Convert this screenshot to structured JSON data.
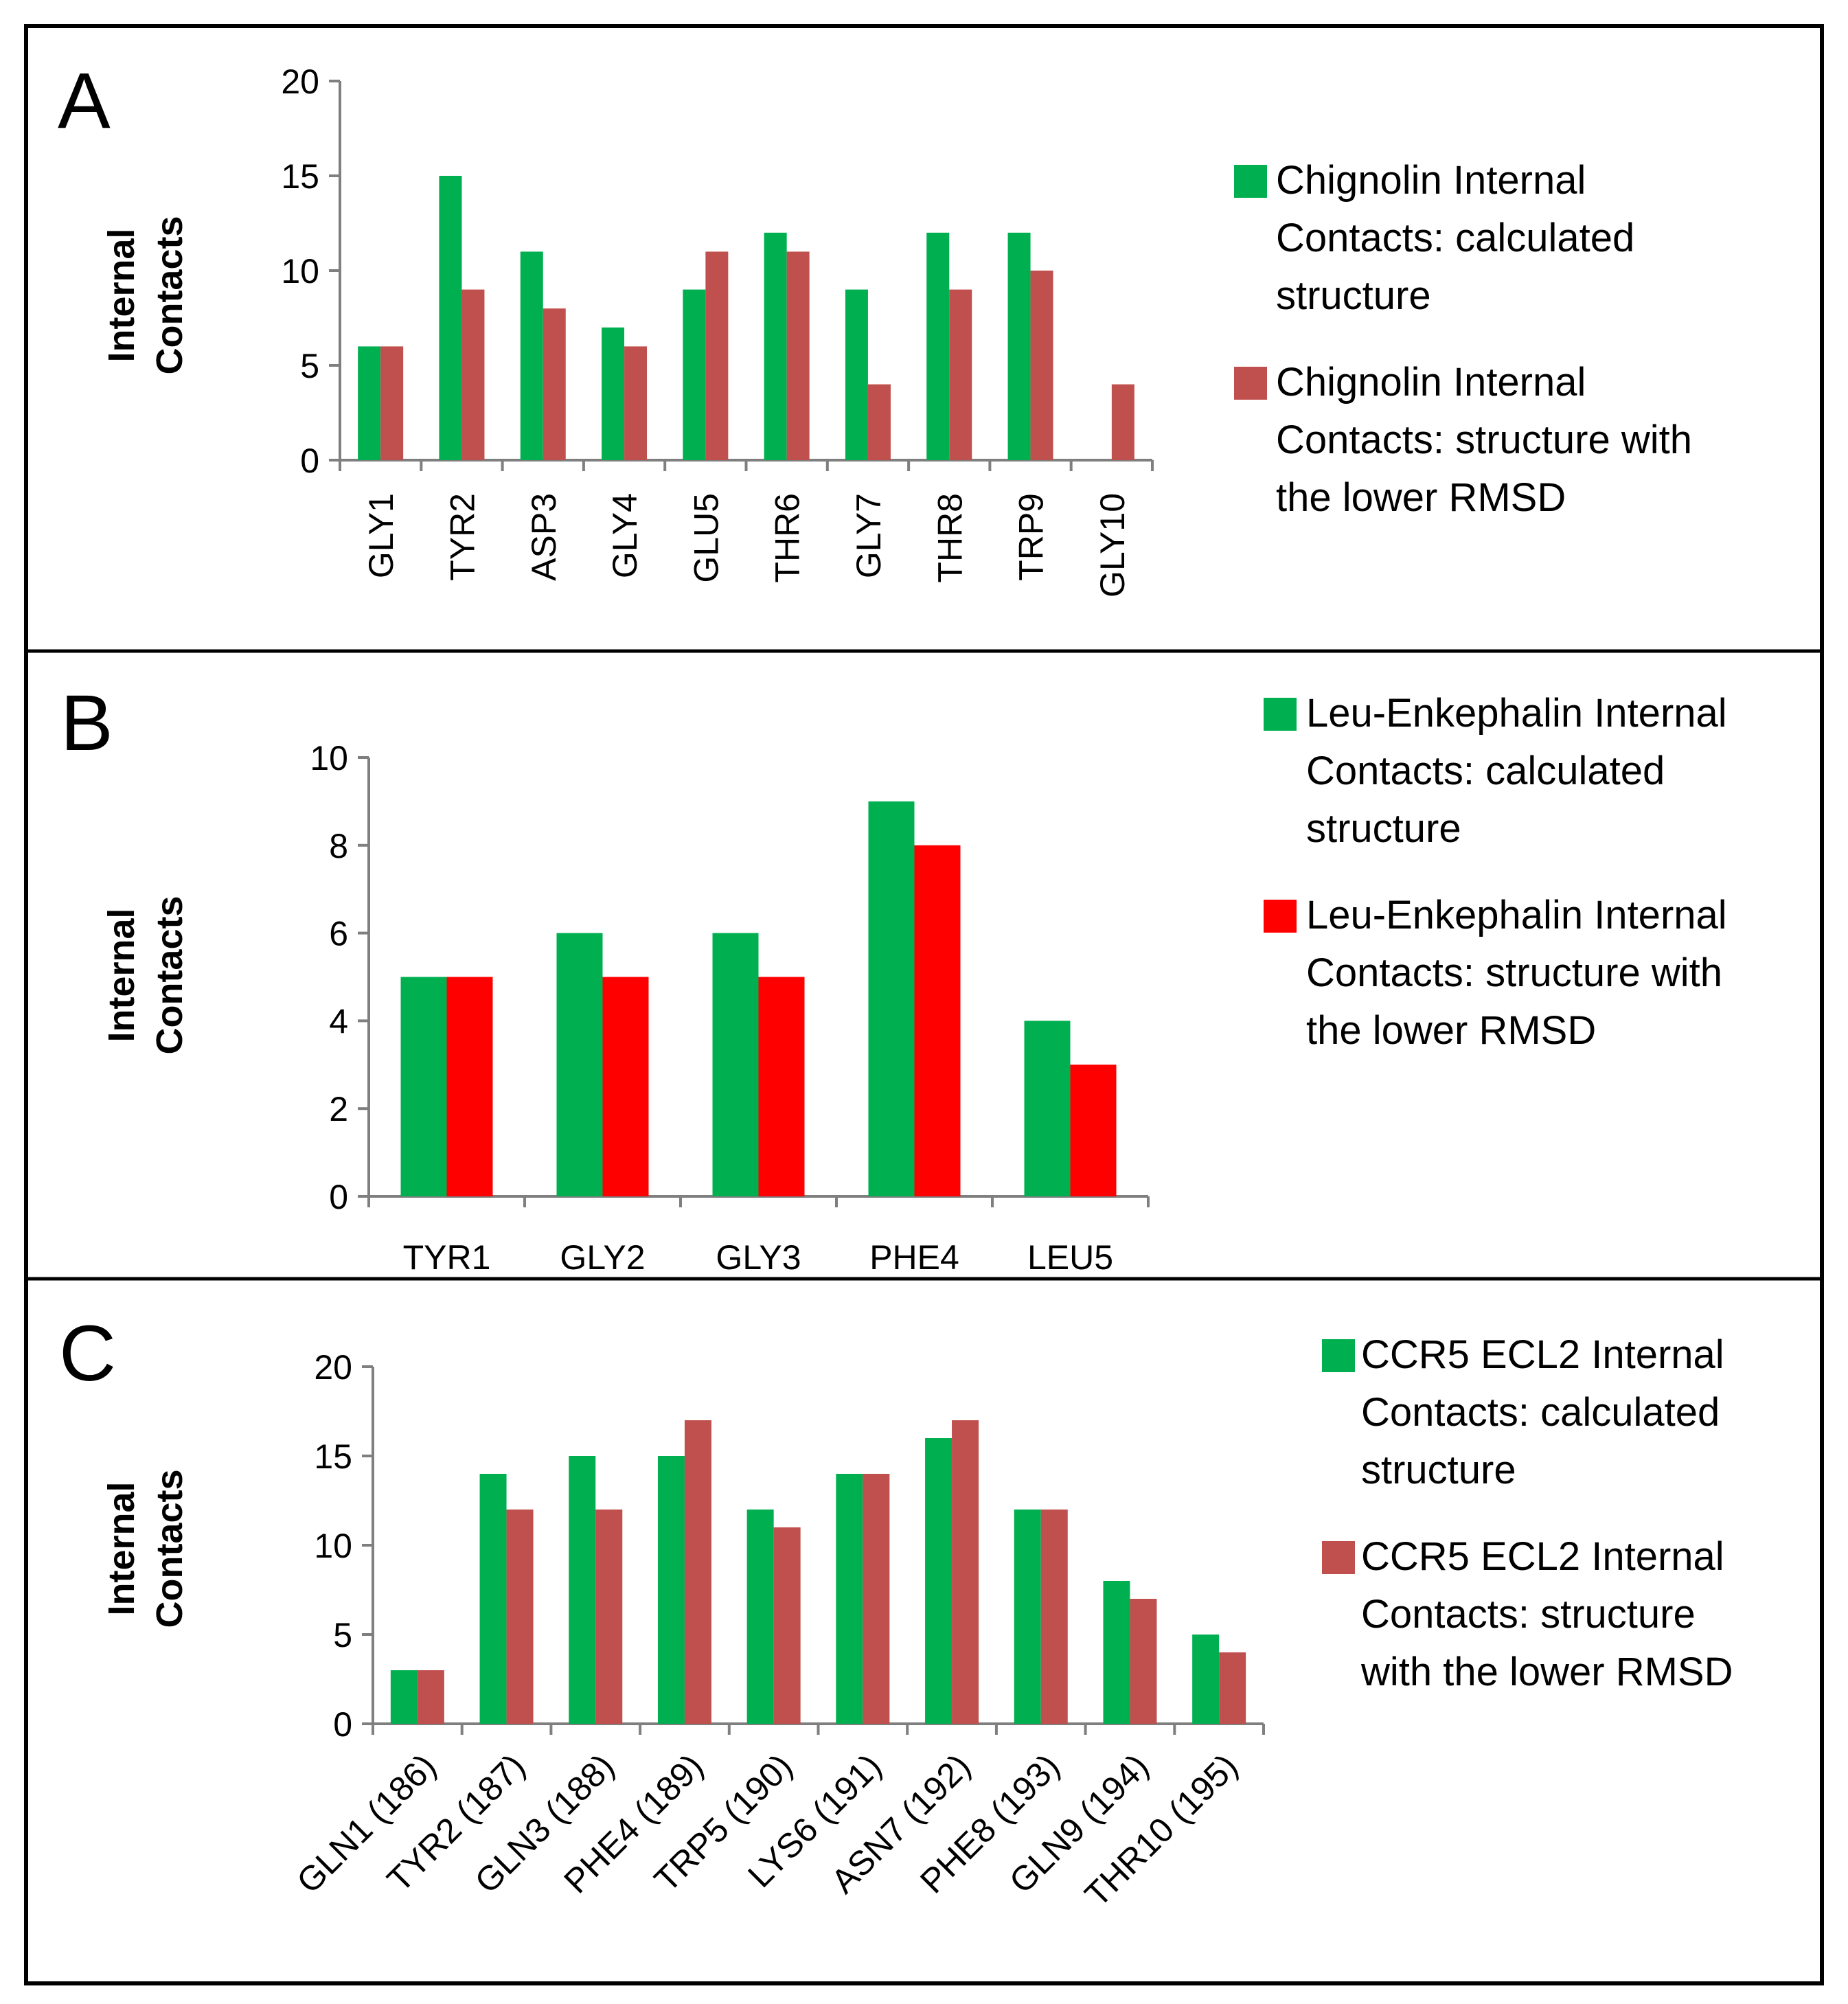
{
  "chart_data": [
    {
      "panel": "A",
      "type": "bar",
      "title": "",
      "xlabel": "",
      "ylabel": [
        "Internal",
        "Contacts"
      ],
      "ylim": [
        0,
        20
      ],
      "yticks": [
        0,
        5,
        10,
        15,
        20
      ],
      "grid": false,
      "legend_position": "right",
      "categories": [
        "GLY1",
        "TYR2",
        "ASP3",
        "GLY4",
        "GLU5",
        "THR6",
        "GLY7",
        "THR8",
        "TRP9",
        "GLY10"
      ],
      "series": [
        {
          "name": "Chignolin Internal Contacts: calculated structure",
          "legend_lines": [
            "Chignolin Internal",
            "Contacts: calculated",
            "structure"
          ],
          "color": "#00b050",
          "values": [
            6,
            15,
            11,
            7,
            9,
            12,
            9,
            12,
            12,
            0
          ]
        },
        {
          "name": "Chignolin Internal Contacts: structure with the lower RMSD",
          "legend_lines": [
            "Chignolin Internal",
            "Contacts: structure with",
            "the lower RMSD"
          ],
          "color": "#c0504d",
          "values": [
            6,
            9,
            8,
            6,
            11,
            11,
            4,
            9,
            10,
            4
          ]
        }
      ]
    },
    {
      "panel": "B",
      "type": "bar",
      "title": "",
      "xlabel": "",
      "ylabel": [
        "Internal",
        "Contacts"
      ],
      "ylim": [
        0,
        10
      ],
      "yticks": [
        0,
        2,
        4,
        6,
        8,
        10
      ],
      "grid": false,
      "legend_position": "right",
      "categories": [
        "TYR1",
        "GLY2",
        "GLY3",
        "PHE4",
        "LEU5"
      ],
      "series": [
        {
          "name": "Leu-Enkephalin Internal Contacts: calculated structure",
          "legend_lines": [
            "Leu-Enkephalin Internal",
            "Contacts: calculated",
            "structure"
          ],
          "color": "#00b050",
          "values": [
            5,
            6,
            6,
            9,
            4
          ]
        },
        {
          "name": "Leu-Enkephalin Internal Contacts: structure with the lower RMSD",
          "legend_lines": [
            "Leu-Enkephalin Internal",
            "Contacts: structure with",
            "the lower RMSD"
          ],
          "color": "#ff0000",
          "values": [
            5,
            5,
            5,
            8,
            3
          ]
        }
      ]
    },
    {
      "panel": "C",
      "type": "bar",
      "title": "",
      "xlabel": "",
      "ylabel": [
        "Internal",
        "Contacts"
      ],
      "ylim": [
        0,
        20
      ],
      "yticks": [
        0,
        5,
        10,
        15,
        20
      ],
      "grid": false,
      "legend_position": "right",
      "categories": [
        "GLN1 (186)",
        "TYR2 (187)",
        "GLN3 (188)",
        "PHE4 (189)",
        "TRP5 (190)",
        "LYS6 (191)",
        "ASN7 (192)",
        "PHE8 (193)",
        "GLN9 (194)",
        "THR10 (195)"
      ],
      "series": [
        {
          "name": "CCR5 ECL2 Internal Contacts: calculated structure",
          "legend_lines": [
            "CCR5 ECL2 Internal",
            "Contacts: calculated",
            "structure"
          ],
          "color": "#00b050",
          "values": [
            3,
            14,
            15,
            15,
            12,
            14,
            16,
            12,
            8,
            5
          ]
        },
        {
          "name": "CCR5 ECL2 Internal Contacts: structure with the lower RMSD",
          "legend_lines": [
            "CCR5 ECL2 Internal",
            "Contacts: structure",
            "with the lower RMSD"
          ],
          "color": "#c0504d",
          "values": [
            3,
            12,
            12,
            17,
            11,
            14,
            17,
            12,
            7,
            4
          ]
        }
      ]
    }
  ]
}
